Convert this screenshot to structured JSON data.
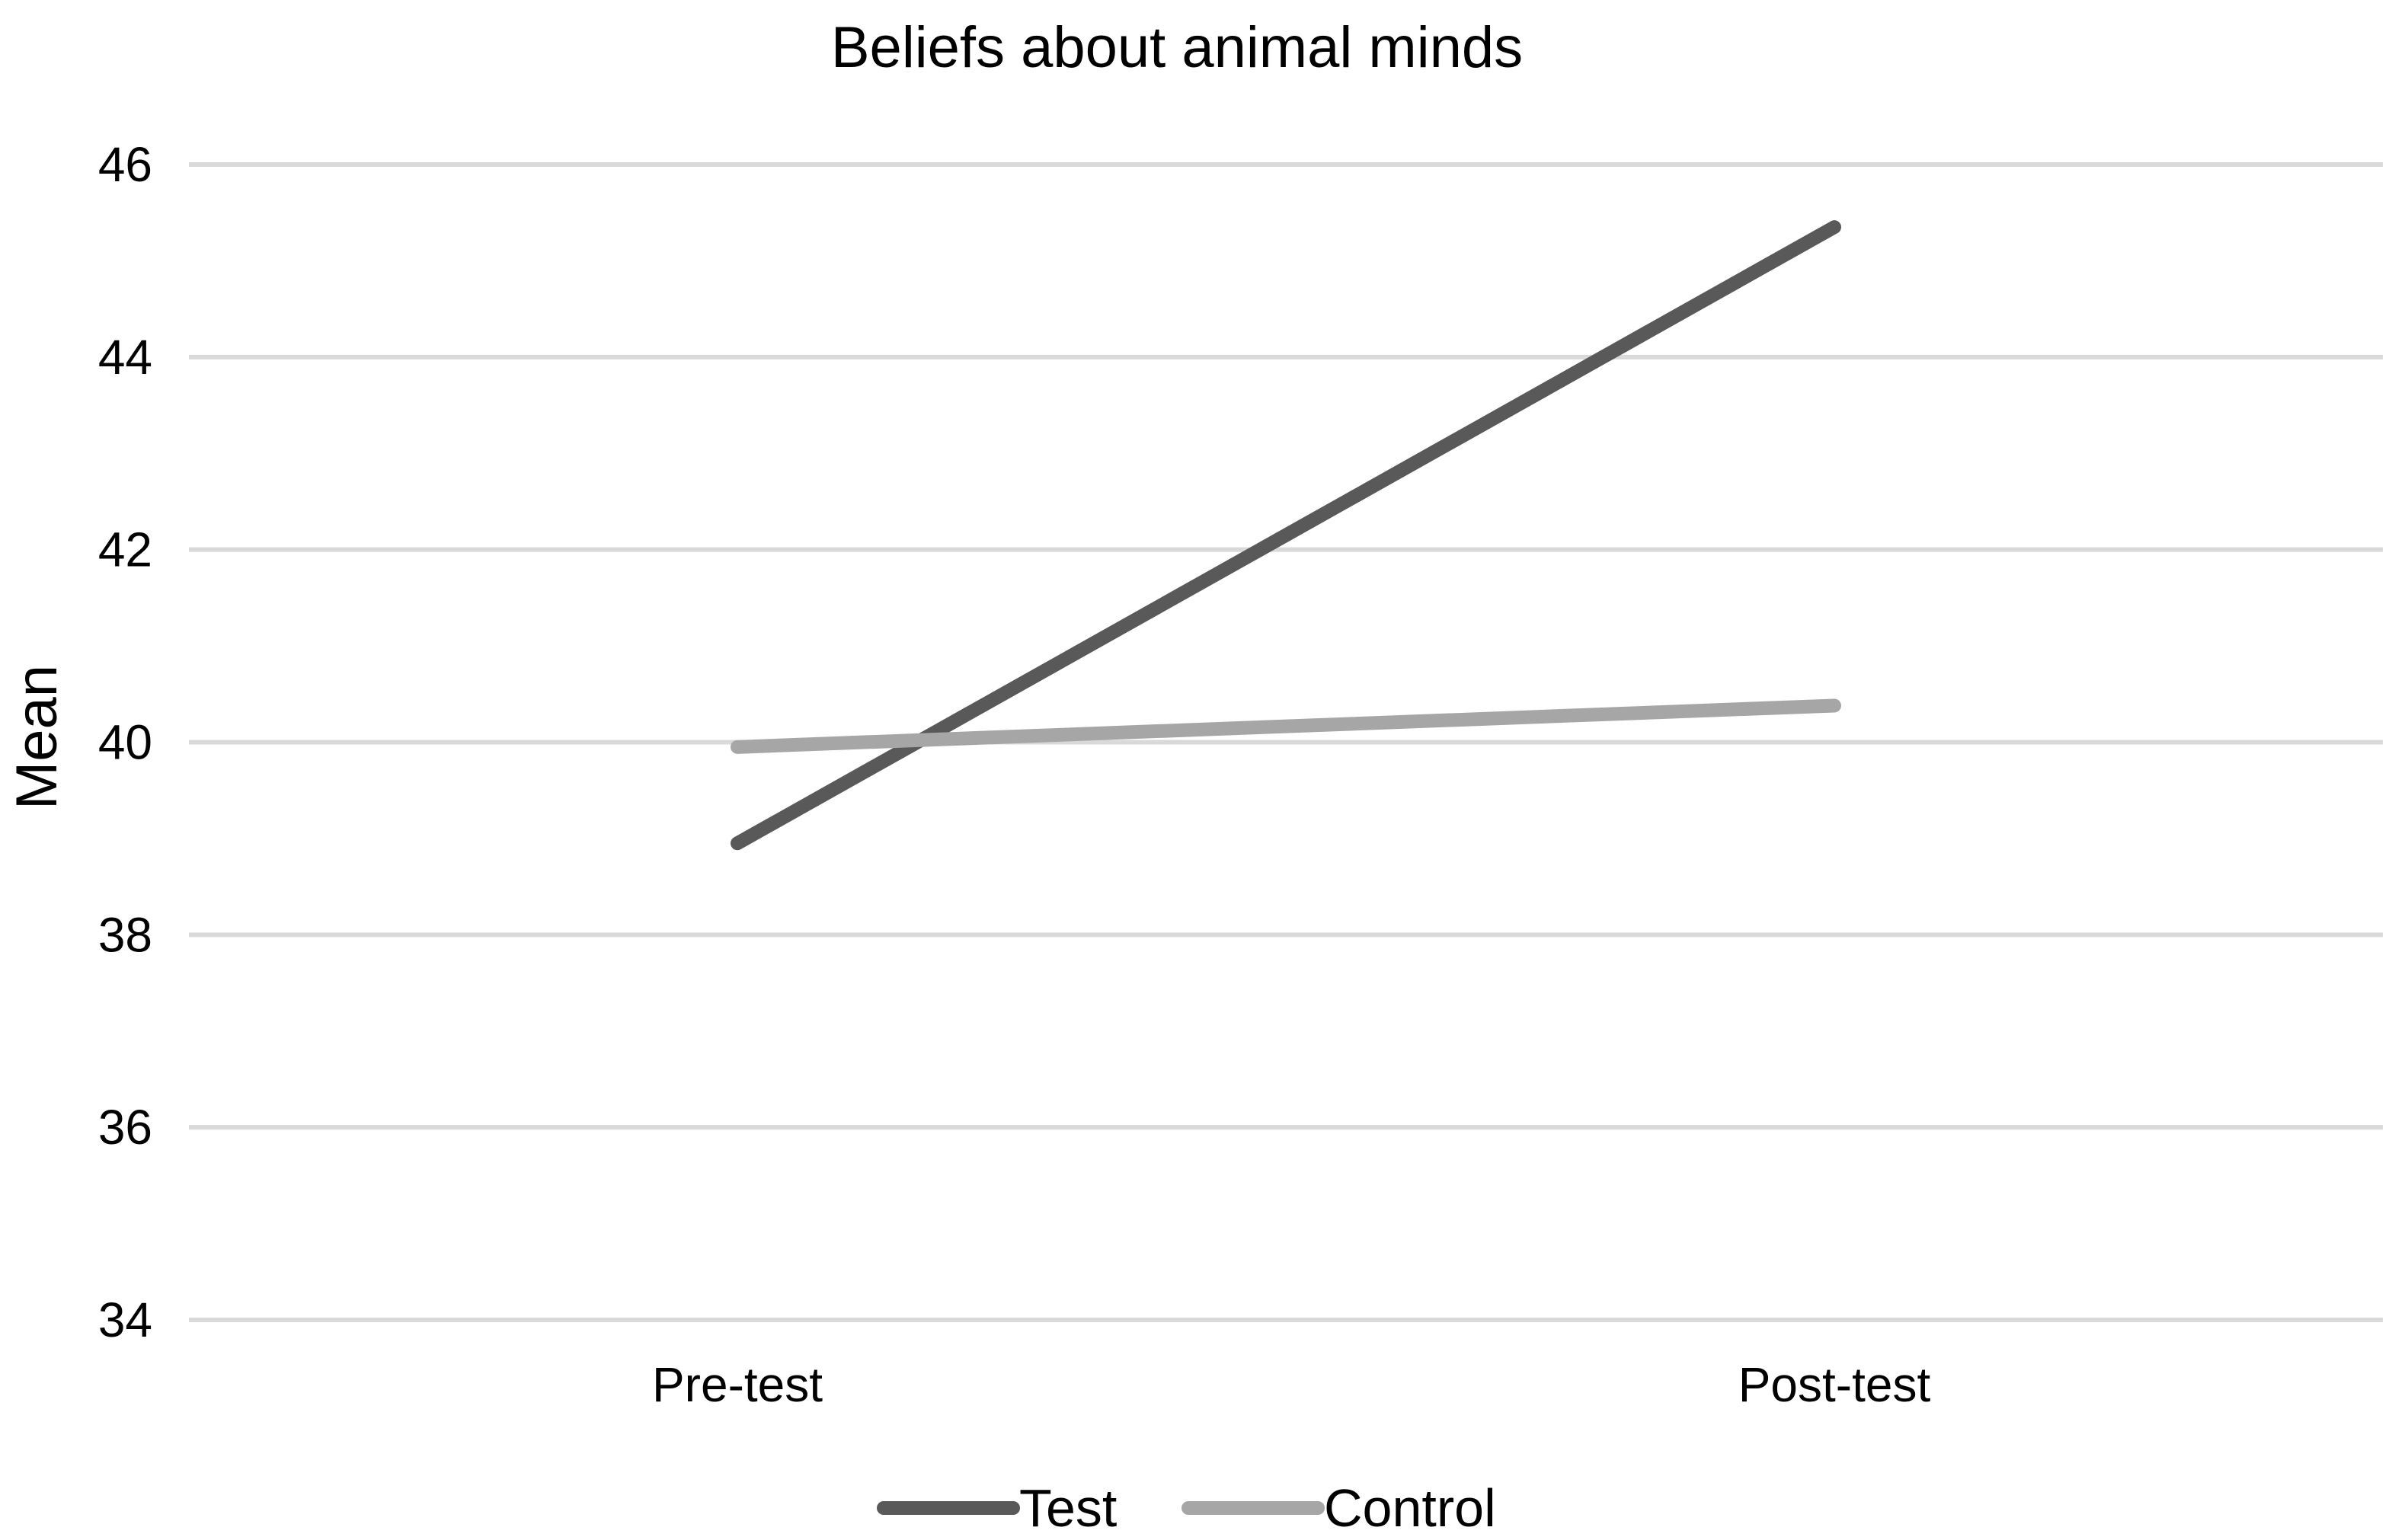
{
  "chart_data": {
    "type": "line",
    "title": "Beliefs about animal minds",
    "xlabel": "",
    "ylabel": "Mean",
    "categories": [
      "Pre-test",
      "Post-test"
    ],
    "ylim": [
      34,
      46
    ],
    "yticks": [
      34,
      36,
      38,
      40,
      42,
      44,
      46
    ],
    "ytick_labels": [
      "34",
      "36",
      "38",
      "40",
      "42",
      "44",
      "46"
    ],
    "grid": true,
    "legend_position": "bottom",
    "series": [
      {
        "name": "Test",
        "values": [
          38.95,
          45.35
        ],
        "color": "#595959"
      },
      {
        "name": "Control",
        "values": [
          39.95,
          40.38
        ],
        "color": "#a6a6a6"
      }
    ],
    "gridline_color": "#d9d9d9"
  }
}
